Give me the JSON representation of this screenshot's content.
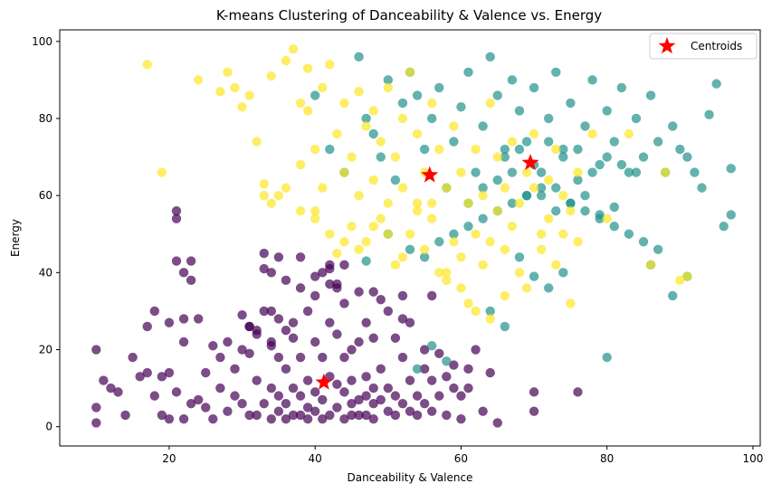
{
  "chart_data": {
    "type": "scatter",
    "title": "K-means Clustering of Danceability & Valence vs. Energy",
    "xlabel": "Danceability & Valence",
    "ylabel": "Energy",
    "xlim": [
      5,
      101
    ],
    "ylim": [
      -5,
      103
    ],
    "xticks": [
      20,
      40,
      60,
      80,
      100
    ],
    "yticks": [
      0,
      20,
      40,
      60,
      80,
      100
    ],
    "grid": false,
    "legend": {
      "position": "top-right",
      "entries": [
        "Centroids"
      ]
    },
    "colors": {
      "cluster_low": "#440154",
      "cluster_teal": "#21918c",
      "cluster_yellow": "#fde725",
      "centroid": "#ff0000"
    },
    "centroids": [
      {
        "x": 41.2,
        "y": 11.5
      },
      {
        "x": 55.7,
        "y": 65.3
      },
      {
        "x": 69.5,
        "y": 68.5
      }
    ],
    "series": [
      {
        "cluster": 0,
        "color": "#440154",
        "x": [
          10,
          10,
          10,
          11,
          12,
          13,
          14,
          15,
          16,
          17,
          17,
          18,
          18,
          19,
          19,
          20,
          20,
          20,
          21,
          21,
          21,
          22,
          22,
          22,
          23,
          23,
          24,
          24,
          25,
          25,
          26,
          26,
          27,
          27,
          28,
          28,
          29,
          29,
          30,
          30,
          31,
          31,
          31,
          32,
          32,
          32,
          33,
          33,
          33,
          34,
          34,
          34,
          34,
          35,
          35,
          35,
          35,
          36,
          36,
          36,
          36,
          37,
          37,
          37,
          37,
          38,
          38,
          38,
          38,
          39,
          39,
          39,
          39,
          40,
          40,
          40,
          40,
          41,
          41,
          41,
          41,
          42,
          42,
          42,
          42,
          43,
          43,
          43,
          43,
          44,
          44,
          44,
          44,
          45,
          45,
          45,
          45,
          46,
          46,
          46,
          46,
          47,
          47,
          47,
          47,
          48,
          48,
          48,
          48,
          49,
          49,
          49,
          50,
          50,
          50,
          51,
          51,
          51,
          52,
          52,
          52,
          53,
          53,
          53,
          54,
          54,
          55,
          55,
          55,
          56,
          56,
          57,
          57,
          58,
          58,
          59,
          59,
          60,
          60,
          61,
          61,
          62,
          63,
          64,
          65,
          70,
          70,
          76,
          33,
          35,
          34,
          36,
          38,
          42,
          44,
          22,
          23,
          21,
          43,
          40,
          42,
          48,
          52,
          56,
          30,
          31,
          32,
          34
        ],
        "y": [
          20,
          5,
          1,
          12,
          10,
          9,
          3,
          18,
          13,
          26,
          14,
          30,
          8,
          3,
          13,
          27,
          14,
          2,
          54,
          56,
          9,
          28,
          22,
          2,
          43,
          6,
          28,
          7,
          14,
          5,
          21,
          2,
          10,
          18,
          4,
          22,
          15,
          8,
          6,
          20,
          19,
          26,
          3,
          3,
          25,
          12,
          41,
          30,
          6,
          22,
          10,
          2,
          30,
          18,
          8,
          4,
          28,
          25,
          6,
          15,
          2,
          23,
          10,
          3,
          27,
          36,
          18,
          8,
          3,
          30,
          12,
          5,
          2,
          34,
          22,
          9,
          4,
          18,
          7,
          2,
          40,
          13,
          27,
          3,
          41,
          11,
          24,
          5,
          36,
          9,
          18,
          2,
          32,
          20,
          6,
          3,
          12,
          7,
          3,
          22,
          35,
          13,
          27,
          3,
          8,
          23,
          6,
          10,
          2,
          33,
          7,
          15,
          30,
          4,
          10,
          23,
          8,
          3,
          18,
          6,
          34,
          12,
          4,
          27,
          8,
          3,
          20,
          6,
          15,
          12,
          4,
          19,
          8,
          13,
          3,
          16,
          10,
          8,
          2,
          15,
          10,
          20,
          4,
          14,
          1,
          9,
          4,
          9,
          45,
          44,
          40,
          38,
          44,
          37,
          42,
          40,
          38,
          43,
          37,
          39,
          42,
          35,
          28,
          34,
          29,
          26,
          24,
          21
        ]
      },
      {
        "cluster": 1,
        "color": "#21918c",
        "x": [
          40,
          42,
          44,
          46,
          47,
          48,
          49,
          50,
          51,
          52,
          53,
          54,
          55,
          56,
          57,
          58,
          59,
          60,
          61,
          62,
          63,
          64,
          65,
          66,
          67,
          68,
          69,
          70,
          71,
          72,
          73,
          74,
          75,
          76,
          77,
          78,
          79,
          80,
          81,
          82,
          83,
          84,
          85,
          86,
          87,
          88,
          89,
          90,
          91,
          92,
          93,
          94,
          95,
          96,
          97,
          97,
          47,
          50,
          53,
          55,
          57,
          59,
          61,
          63,
          65,
          67,
          69,
          71,
          73,
          75,
          77,
          79,
          81,
          83,
          85,
          87,
          89,
          91,
          61,
          63,
          65,
          67,
          69,
          71,
          73,
          75,
          77,
          79,
          81,
          66,
          68,
          70,
          72,
          74,
          76,
          78,
          80,
          82,
          84,
          56,
          58,
          54,
          64,
          66,
          74,
          80,
          72,
          70,
          68,
          86
        ],
        "y": [
          86,
          72,
          66,
          96,
          80,
          76,
          70,
          90,
          64,
          84,
          92,
          86,
          72,
          80,
          88,
          62,
          74,
          83,
          92,
          66,
          78,
          96,
          86,
          72,
          90,
          82,
          74,
          88,
          66,
          80,
          92,
          72,
          84,
          64,
          78,
          90,
          68,
          82,
          74,
          88,
          66,
          80,
          70,
          86,
          74,
          66,
          78,
          72,
          70,
          66,
          62,
          81,
          89,
          52,
          67,
          55,
          43,
          50,
          46,
          44,
          48,
          50,
          52,
          54,
          56,
          58,
          60,
          60,
          62,
          58,
          56,
          54,
          52,
          50,
          48,
          46,
          34,
          39,
          58,
          62,
          64,
          66,
          60,
          62,
          56,
          58,
          60,
          55,
          57,
          70,
          72,
          68,
          74,
          70,
          72,
          66,
          70,
          68,
          66,
          21,
          17,
          15,
          30,
          26,
          40,
          18,
          36,
          39,
          44,
          42
        ]
      },
      {
        "cluster": 2,
        "color": "#fde725",
        "x": [
          17,
          19,
          24,
          27,
          28,
          29,
          30,
          31,
          32,
          33,
          34,
          35,
          36,
          37,
          38,
          38,
          39,
          39,
          40,
          40,
          41,
          41,
          42,
          42,
          43,
          43,
          44,
          44,
          45,
          45,
          46,
          46,
          47,
          47,
          48,
          48,
          49,
          49,
          50,
          50,
          51,
          51,
          52,
          52,
          53,
          53,
          54,
          54,
          55,
          55,
          56,
          56,
          57,
          57,
          58,
          58,
          59,
          59,
          60,
          60,
          61,
          61,
          62,
          62,
          63,
          63,
          64,
          64,
          65,
          65,
          66,
          66,
          67,
          67,
          68,
          68,
          69,
          69,
          70,
          70,
          71,
          71,
          72,
          72,
          73,
          73,
          74,
          74,
          75,
          75,
          76,
          76,
          78,
          80,
          83,
          86,
          88,
          90,
          91,
          33,
          34,
          36,
          38,
          40,
          44,
          46,
          48,
          50,
          52,
          54,
          56,
          58,
          60,
          62,
          64,
          66
        ],
        "y": [
          94,
          66,
          90,
          87,
          92,
          88,
          83,
          86,
          74,
          63,
          91,
          60,
          95,
          98,
          84,
          68,
          93,
          82,
          72,
          56,
          88,
          62,
          94,
          50,
          76,
          45,
          84,
          66,
          70,
          52,
          87,
          60,
          78,
          48,
          82,
          64,
          74,
          54,
          88,
          58,
          70,
          42,
          80,
          62,
          92,
          50,
          76,
          58,
          66,
          46,
          84,
          54,
          72,
          40,
          62,
          38,
          78,
          48,
          66,
          44,
          58,
          32,
          72,
          50,
          60,
          42,
          84,
          48,
          70,
          56,
          62,
          46,
          74,
          52,
          58,
          40,
          66,
          36,
          76,
          62,
          50,
          46,
          64,
          54,
          72,
          42,
          60,
          50,
          56,
          32,
          66,
          48,
          76,
          54,
          76,
          42,
          66,
          38,
          39,
          60,
          58,
          62,
          56,
          54,
          48,
          46,
          52,
          50,
          44,
          56,
          58,
          40,
          36,
          30,
          28,
          34
        ]
      }
    ]
  }
}
